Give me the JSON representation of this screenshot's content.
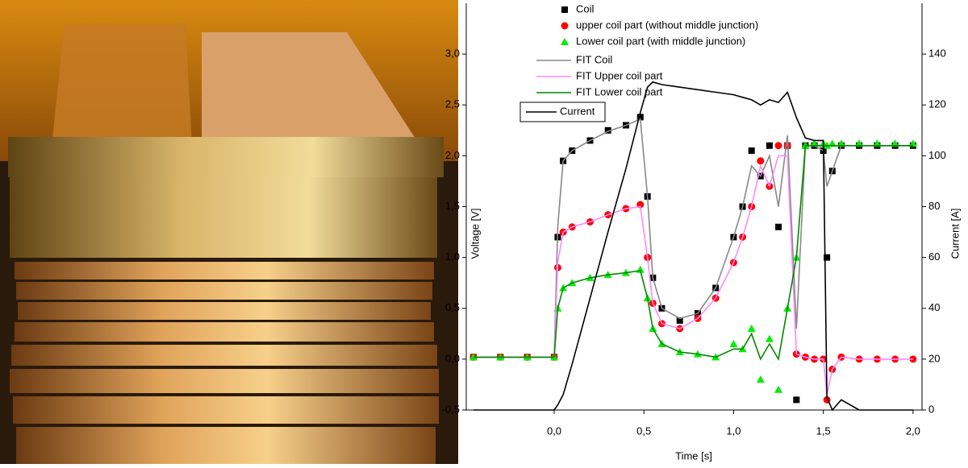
{
  "chart_data": {
    "type": "line",
    "x_label": "Time [s]",
    "y_label": "Voltage [V]",
    "y2_label": "Current [A]",
    "xlim": [
      -0.49,
      2.05
    ],
    "ylim": [
      -0.5,
      3.5
    ],
    "y2lim": [
      0,
      160
    ],
    "xticks": [
      {
        "value": 0,
        "label": "0,0"
      },
      {
        "value": 0.5,
        "label": "0,5"
      },
      {
        "value": 1,
        "label": "1,0"
      },
      {
        "value": 1.5,
        "label": "1,5"
      },
      {
        "value": 2,
        "label": "2,0"
      }
    ],
    "yticks": [
      {
        "value": -0.5,
        "label": "-0,5"
      },
      {
        "value": 0,
        "label": "0,0"
      },
      {
        "value": 0.5,
        "label": "0,5"
      },
      {
        "value": 1,
        "label": "1,0"
      },
      {
        "value": 1.5,
        "label": "1,5"
      },
      {
        "value": 2,
        "label": "2,0"
      },
      {
        "value": 2.5,
        "label": "2,5"
      },
      {
        "value": 3,
        "label": "3,0"
      }
    ],
    "y2ticks": [
      0,
      20,
      40,
      60,
      80,
      100,
      120,
      140
    ],
    "x": [
      -0.45,
      -0.3,
      -0.15,
      0,
      0.02,
      0.05,
      0.1,
      0.2,
      0.3,
      0.4,
      0.48,
      0.52,
      0.55,
      0.6,
      0.7,
      0.8,
      0.9,
      1.0,
      1.05,
      1.1,
      1.15,
      1.2,
      1.25,
      1.3,
      1.35,
      1.4,
      1.45,
      1.5,
      1.52,
      1.55,
      1.6,
      1.7,
      1.8,
      1.9,
      2.0
    ],
    "series": [
      {
        "name": "Coil",
        "type": "scatter",
        "marker": "square",
        "color": "#000000",
        "values": [
          0.02,
          0.02,
          0.02,
          0.02,
          1.2,
          1.95,
          2.05,
          2.15,
          2.25,
          2.3,
          2.38,
          1.6,
          0.8,
          0.5,
          0.38,
          0.45,
          0.7,
          1.2,
          1.5,
          2.05,
          1.8,
          2.1,
          1.3,
          2.1,
          -0.4,
          2.1,
          2.1,
          2.05,
          1.0,
          1.85,
          2.1,
          2.1,
          2.1,
          2.1,
          2.1
        ]
      },
      {
        "name": "upper coil part (without middle junction)",
        "type": "scatter",
        "marker": "circle",
        "color": "#ff0000",
        "values": [
          0.02,
          0.02,
          0.02,
          0.02,
          0.9,
          1.25,
          1.3,
          1.35,
          1.42,
          1.48,
          1.52,
          1.0,
          0.55,
          0.35,
          0.3,
          0.4,
          0.6,
          0.95,
          1.2,
          1.5,
          1.95,
          1.7,
          2.1,
          2.1,
          0.05,
          0.02,
          0.0,
          0.0,
          -0.4,
          -0.1,
          0.02,
          0.0,
          0.0,
          0.0,
          0.0
        ]
      },
      {
        "name": "Lower coil part (with middle junction)",
        "type": "scatter",
        "marker": "triangle",
        "color": "#00ee00",
        "values": [
          0.02,
          0.02,
          0.02,
          0.02,
          0.5,
          0.7,
          0.75,
          0.8,
          0.83,
          0.85,
          0.88,
          0.6,
          0.3,
          0.15,
          0.07,
          0.05,
          0.02,
          0.15,
          0.1,
          0.3,
          -0.2,
          0.2,
          -0.3,
          0.5,
          1.0,
          2.1,
          2.12,
          2.12,
          2.1,
          2.12,
          2.12,
          2.12,
          2.12,
          2.12,
          2.12
        ]
      },
      {
        "name": "FIT Coil",
        "type": "line",
        "color": "#888888",
        "values": [
          0.02,
          0.02,
          0.02,
          0.02,
          1.3,
          1.95,
          2.05,
          2.15,
          2.24,
          2.3,
          2.36,
          1.6,
          0.8,
          0.5,
          0.4,
          0.45,
          0.7,
          1.2,
          1.5,
          1.9,
          1.8,
          2.0,
          1.5,
          2.2,
          0.3,
          2.1,
          2.1,
          2.05,
          1.7,
          1.85,
          2.1,
          2.1,
          2.1,
          2.1,
          2.1
        ]
      },
      {
        "name": "FIT Upper coil part",
        "type": "line",
        "color": "#ff88ff",
        "values": [
          0.02,
          0.02,
          0.02,
          0.02,
          0.95,
          1.25,
          1.3,
          1.35,
          1.42,
          1.48,
          1.5,
          1.0,
          0.55,
          0.35,
          0.3,
          0.4,
          0.6,
          0.95,
          1.2,
          1.5,
          1.9,
          1.7,
          2.0,
          2.0,
          0.05,
          0.02,
          0.0,
          0.0,
          -0.35,
          -0.1,
          0.02,
          0.0,
          0.0,
          0.0,
          0.0
        ]
      },
      {
        "name": "FIT Lower coil part",
        "type": "line",
        "color": "#008800",
        "values": [
          0.02,
          0.02,
          0.02,
          0.02,
          0.5,
          0.7,
          0.75,
          0.8,
          0.83,
          0.85,
          0.87,
          0.6,
          0.3,
          0.15,
          0.07,
          0.05,
          0.02,
          0.1,
          0.1,
          0.25,
          0.0,
          0.15,
          0.0,
          0.5,
          1.0,
          2.1,
          2.1,
          2.1,
          2.1,
          2.1,
          2.1,
          2.1,
          2.1,
          2.1,
          2.1
        ]
      },
      {
        "name": "Current",
        "type": "line",
        "axis": "y2",
        "color": "#000000",
        "values": [
          0,
          0,
          0,
          0,
          2,
          6,
          18,
          44,
          70,
          95,
          117,
          127,
          129,
          128,
          127,
          126,
          125,
          124,
          123,
          122,
          120,
          122,
          121,
          125,
          115,
          107,
          106,
          106,
          5,
          0,
          4,
          0,
          0,
          0,
          0
        ]
      }
    ]
  }
}
